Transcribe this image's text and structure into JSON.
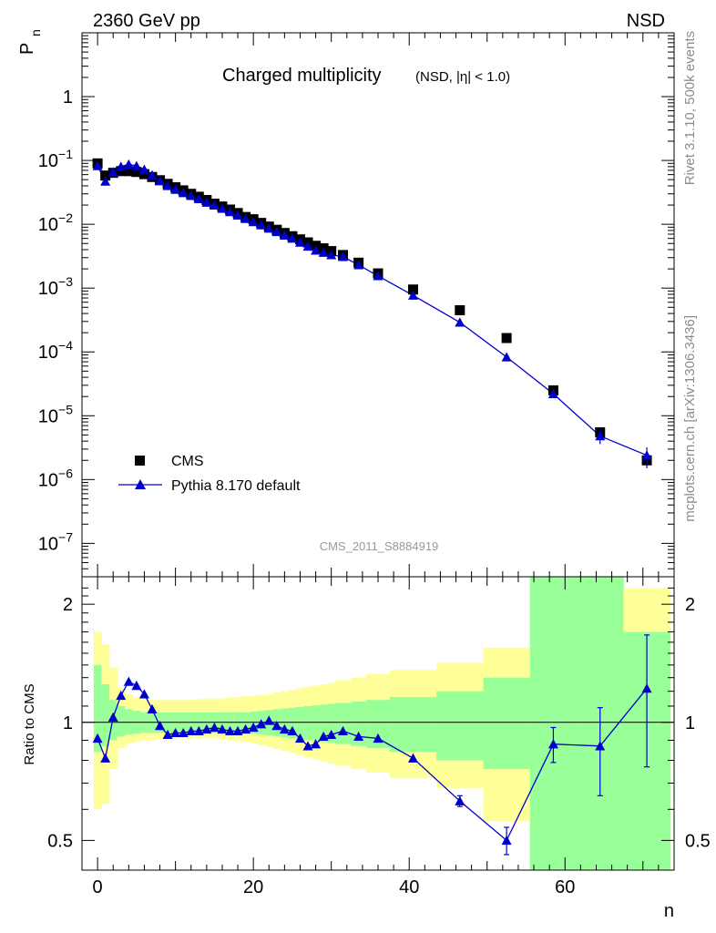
{
  "header": {
    "left": "2360 GeV pp",
    "right": "NSD"
  },
  "side": {
    "top": "Rivet 3.1.10,  500k events",
    "bottom": "mcplots.cern.ch [arXiv:1306.3436]"
  },
  "chart_data": [
    {
      "type": "scatter",
      "title": "Charged multiplicity",
      "subtitle": "(NSD, |η| < 1.0)",
      "ylabel": "P",
      "ylabel_subscript": "n",
      "yscale": "log",
      "xlim": [
        -2,
        74
      ],
      "ylim": [
        3e-08,
        10
      ],
      "ytick_labels": [
        {
          "base": "1",
          "exp": ""
        },
        {
          "base": "10",
          "exp": "−1"
        },
        {
          "base": "10",
          "exp": "−2"
        },
        {
          "base": "10",
          "exp": "−3"
        },
        {
          "base": "10",
          "exp": "−4"
        },
        {
          "base": "10",
          "exp": "−5"
        },
        {
          "base": "10",
          "exp": "−6"
        },
        {
          "base": "10",
          "exp": "−7"
        }
      ],
      "ytick_values": [
        1,
        0.1,
        0.01,
        0.001,
        0.0001,
        1e-05,
        1e-06,
        1e-07
      ],
      "analysis_label": "CMS_2011_S8884919",
      "legend_position": "bottom-left",
      "series": [
        {
          "name": "CMS",
          "color": "#000000",
          "marker": "square",
          "x": [
            0,
            1,
            2,
            3,
            4,
            5,
            6,
            7,
            8,
            9,
            10,
            11,
            12,
            13,
            14,
            15,
            16,
            17,
            18,
            19,
            20,
            21,
            22,
            23,
            24,
            25,
            26,
            27,
            28,
            29,
            30,
            31.5,
            33.5,
            36,
            40.5,
            46.5,
            52.5,
            58.5,
            64.5,
            70.5
          ],
          "y": [
            0.09,
            0.058,
            0.064,
            0.068,
            0.068,
            0.066,
            0.061,
            0.055,
            0.049,
            0.043,
            0.038,
            0.034,
            0.03,
            0.027,
            0.024,
            0.021,
            0.019,
            0.017,
            0.015,
            0.013,
            0.012,
            0.0105,
            0.0092,
            0.0082,
            0.0073,
            0.0065,
            0.0058,
            0.0052,
            0.0046,
            0.0042,
            0.0038,
            0.0033,
            0.0025,
            0.0017,
            0.00095,
            0.00045,
            0.000165,
            2.5e-05,
            5.5e-06,
            2e-06
          ]
        },
        {
          "name": "Pythia 8.170 default",
          "color": "#0000cc",
          "marker": "triangle",
          "x": [
            0,
            1,
            2,
            3,
            4,
            5,
            6,
            7,
            8,
            9,
            10,
            11,
            12,
            13,
            14,
            15,
            16,
            17,
            18,
            19,
            20,
            21,
            22,
            23,
            24,
            25,
            26,
            27,
            28,
            29,
            30,
            31.5,
            33.5,
            36,
            40.5,
            46.5,
            52.5,
            58.5,
            64.5,
            70.5
          ],
          "y": [
            0.082,
            0.047,
            0.066,
            0.08,
            0.087,
            0.082,
            0.072,
            0.059,
            0.048,
            0.04,
            0.035,
            0.031,
            0.028,
            0.025,
            0.022,
            0.0198,
            0.0176,
            0.0156,
            0.0138,
            0.0122,
            0.0109,
            0.0097,
            0.0086,
            0.0076,
            0.0067,
            0.006,
            0.0052,
            0.0045,
            0.0039,
            0.0036,
            0.0033,
            0.0031,
            0.0023,
            0.00155,
            0.00077,
            0.00029,
            8.3e-05,
            2.2e-05,
            4.8e-06,
            2.4e-06
          ]
        }
      ]
    },
    {
      "type": "line",
      "ylabel": "Ratio to CMS",
      "xlabel": "n",
      "yscale": "log",
      "xlim": [
        -2,
        74
      ],
      "ylim": [
        0.42,
        2.35
      ],
      "yticks": [
        0.5,
        1,
        2
      ],
      "ytick_labels": [
        "0.5",
        "1",
        "2"
      ],
      "xticks": [
        0,
        20,
        40,
        60
      ],
      "xtick_labels": [
        "0",
        "20",
        "40",
        "60"
      ],
      "reference_line": 1,
      "bands": {
        "edges": [
          -0.5,
          0.5,
          1.5,
          2.5,
          3.5,
          4.5,
          5.5,
          6.5,
          7.5,
          8.5,
          9.5,
          10.5,
          11.5,
          12.5,
          13.5,
          14.5,
          15.5,
          16.5,
          17.5,
          18.5,
          19.5,
          20.5,
          21.5,
          22.5,
          23.5,
          24.5,
          25.5,
          26.5,
          27.5,
          28.5,
          29.5,
          30.5,
          32.5,
          34.5,
          37.5,
          43.5,
          49.5,
          55.5,
          61.5,
          67.5,
          73.5
        ],
        "stat_color": "#99ff99",
        "syst_color": "#ffff99",
        "stat_low": [
          0.84,
          0.87,
          0.9,
          0.92,
          0.93,
          0.935,
          0.94,
          0.94,
          0.94,
          0.94,
          0.94,
          0.94,
          0.94,
          0.94,
          0.94,
          0.94,
          0.94,
          0.94,
          0.94,
          0.94,
          0.935,
          0.93,
          0.925,
          0.92,
          0.915,
          0.91,
          0.905,
          0.9,
          0.895,
          0.89,
          0.885,
          0.88,
          0.87,
          0.86,
          0.84,
          0.8,
          0.76,
          0.35,
          0.35,
          0.35
        ],
        "stat_high": [
          1.4,
          1.25,
          1.14,
          1.1,
          1.08,
          1.07,
          1.06,
          1.06,
          1.06,
          1.06,
          1.06,
          1.06,
          1.06,
          1.06,
          1.06,
          1.06,
          1.06,
          1.06,
          1.06,
          1.06,
          1.065,
          1.07,
          1.075,
          1.08,
          1.085,
          1.09,
          1.095,
          1.1,
          1.105,
          1.11,
          1.115,
          1.12,
          1.13,
          1.14,
          1.16,
          1.2,
          1.3,
          2.6,
          2.6,
          1.7
        ],
        "syst_low": [
          0.6,
          0.62,
          0.76,
          0.86,
          0.88,
          0.89,
          0.9,
          0.9,
          0.905,
          0.91,
          0.91,
          0.91,
          0.91,
          0.91,
          0.91,
          0.91,
          0.905,
          0.9,
          0.895,
          0.89,
          0.885,
          0.875,
          0.865,
          0.855,
          0.845,
          0.835,
          0.825,
          0.815,
          0.805,
          0.795,
          0.785,
          0.775,
          0.76,
          0.745,
          0.72,
          0.68,
          0.56,
          0.35,
          0.35,
          0.35
        ],
        "syst_high": [
          1.7,
          1.58,
          1.38,
          1.22,
          1.18,
          1.16,
          1.15,
          1.14,
          1.14,
          1.14,
          1.14,
          1.14,
          1.14,
          1.145,
          1.15,
          1.15,
          1.15,
          1.155,
          1.16,
          1.165,
          1.17,
          1.175,
          1.18,
          1.19,
          1.2,
          1.21,
          1.22,
          1.23,
          1.24,
          1.25,
          1.26,
          1.28,
          1.3,
          1.33,
          1.36,
          1.42,
          1.55,
          2.6,
          2.6,
          2.2
        ]
      },
      "series": [
        {
          "name": "Pythia 8.170 default",
          "color": "#0000cc",
          "marker": "triangle",
          "x": [
            0,
            1,
            2,
            3,
            4,
            5,
            6,
            7,
            8,
            9,
            10,
            11,
            12,
            13,
            14,
            15,
            16,
            17,
            18,
            19,
            20,
            21,
            22,
            23,
            24,
            25,
            26,
            27,
            28,
            29,
            30,
            31.5,
            33.5,
            36,
            40.5,
            46.5,
            52.5,
            58.5,
            64.5,
            70.5
          ],
          "y": [
            0.91,
            0.81,
            1.03,
            1.17,
            1.27,
            1.24,
            1.18,
            1.08,
            0.98,
            0.93,
            0.94,
            0.94,
            0.95,
            0.95,
            0.96,
            0.97,
            0.96,
            0.95,
            0.95,
            0.96,
            0.97,
            0.99,
            1.01,
            0.98,
            0.96,
            0.95,
            0.91,
            0.87,
            0.88,
            0.92,
            0.93,
            0.95,
            0.92,
            0.91,
            0.81,
            0.63,
            0.5,
            0.88,
            0.87,
            1.22
          ],
          "err": [
            0,
            0,
            0,
            0,
            0,
            0,
            0,
            0,
            0,
            0,
            0,
            0,
            0,
            0,
            0,
            0,
            0,
            0,
            0,
            0,
            0,
            0,
            0,
            0,
            0,
            0,
            0,
            0,
            0,
            0,
            0,
            0,
            0,
            0,
            0,
            0.02,
            0.04,
            0.09,
            0.22,
            0.45
          ]
        }
      ]
    }
  ]
}
